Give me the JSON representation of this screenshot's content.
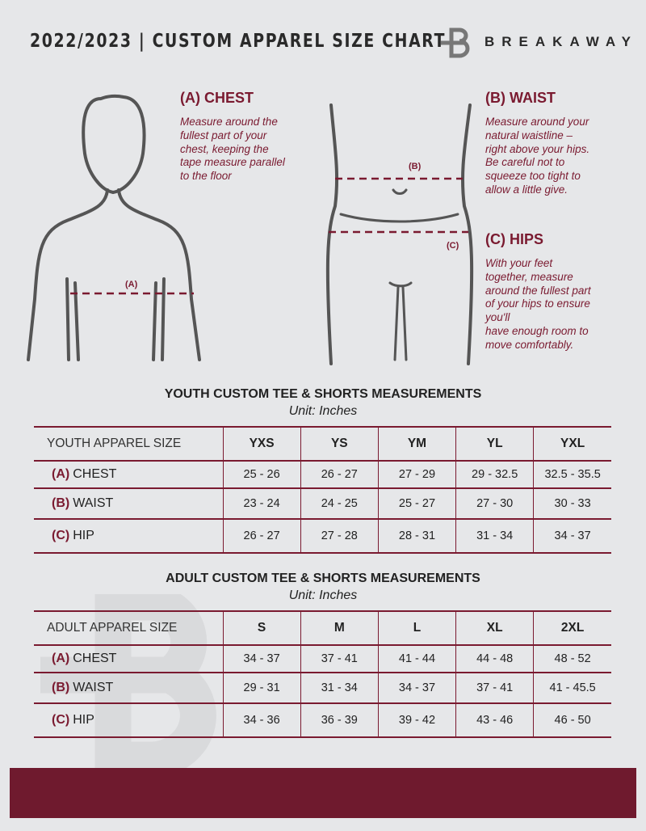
{
  "header": {
    "title": "2022/2023  |  CUSTOM APPAREL SIZE CHART",
    "brand": "BREAKAWAY",
    "logo_icon": "breakaway-b-logo"
  },
  "colors": {
    "accent": "#7a1a30",
    "background": "#e6e7e9",
    "banner": "#6f1a2e"
  },
  "guide": {
    "chest": {
      "heading": "(A) CHEST",
      "marker": "(A)",
      "lines": [
        "Measure around the",
        "fullest part of your",
        "chest, keeping the",
        "tape measure parallel",
        "to the floor"
      ]
    },
    "waist": {
      "heading": "(B) WAIST",
      "marker": "(B)",
      "lines": [
        "Measure around your",
        "natural waistline –",
        "right above your hips.",
        "Be careful not to",
        "squeeze too tight to",
        "allow a little give."
      ]
    },
    "hips": {
      "heading": "(C) HIPS",
      "marker": "(C)",
      "lines": [
        "With your feet",
        "together, measure",
        "around the fullest part",
        "of your hips to ensure",
        "you'll",
        "have enough room to",
        "move comfortably."
      ]
    }
  },
  "youth": {
    "title": "YOUTH CUSTOM TEE & SHORTS MEASUREMENTS",
    "unit": "Unit: Inches",
    "header": "YOUTH APPAREL SIZE",
    "sizes": [
      "YXS",
      "YS",
      "YM",
      "YL",
      "YXL"
    ],
    "rows": [
      {
        "letter": "(A)",
        "label": "CHEST",
        "values": [
          "25 - 26",
          "26 - 27",
          "27 - 29",
          "29 - 32.5",
          "32.5 - 35.5"
        ]
      },
      {
        "letter": "(B)",
        "label": "WAIST",
        "values": [
          "23 - 24",
          "24 - 25",
          "25 - 27",
          "27 - 30",
          "30 - 33"
        ]
      },
      {
        "letter": "(C)",
        "label": "HIP",
        "values": [
          "26 - 27",
          "27 - 28",
          "28 - 31",
          "31 - 34",
          "34 - 37"
        ]
      }
    ]
  },
  "adult": {
    "title": "ADULT CUSTOM TEE & SHORTS MEASUREMENTS",
    "unit": "Unit: Inches",
    "header": "ADULT APPAREL SIZE",
    "sizes": [
      "S",
      "M",
      "L",
      "XL",
      "2XL"
    ],
    "rows": [
      {
        "letter": "(A)",
        "label": "CHEST",
        "values": [
          "34 - 37",
          "37 - 41",
          "41 - 44",
          "44 - 48",
          "48 - 52"
        ]
      },
      {
        "letter": "(B)",
        "label": "WAIST",
        "values": [
          "29 - 31",
          "31 - 34",
          "34 - 37",
          "37 - 41",
          "41 - 45.5"
        ]
      },
      {
        "letter": "(C)",
        "label": "HIP",
        "values": [
          "34 - 36",
          "36 - 39",
          "39 - 42",
          "43 - 46",
          "46 - 50"
        ]
      }
    ]
  }
}
